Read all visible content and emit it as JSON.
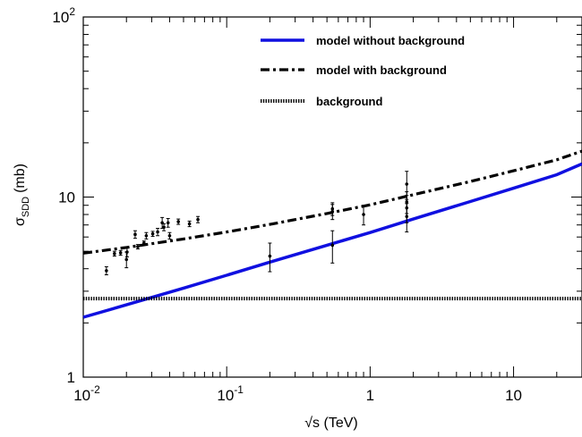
{
  "chart_data": {
    "type": "line",
    "title": "",
    "xlabel": "√s (TeV)",
    "ylabel_main": "σ",
    "ylabel_sub": "SDD",
    "ylabel_unit": "(mb)",
    "xscale": "log",
    "yscale": "log",
    "xlim": [
      0.01,
      30
    ],
    "ylim": [
      1,
      100
    ],
    "grid": false,
    "legend_position": "top-right",
    "x_tick_labels": [
      {
        "value": 0.01,
        "base": "10",
        "exp": "-2"
      },
      {
        "value": 0.1,
        "base": "10",
        "exp": "-1"
      },
      {
        "value": 1,
        "base": "1",
        "exp": ""
      },
      {
        "value": 10,
        "base": "10",
        "exp": ""
      }
    ],
    "y_tick_labels": [
      {
        "value": 1,
        "base": "1",
        "exp": ""
      },
      {
        "value": 10,
        "base": "10",
        "exp": ""
      },
      {
        "value": 100,
        "base": "10",
        "exp": "2"
      }
    ],
    "series": [
      {
        "name": "model without background",
        "style": "solid",
        "color": "#1010e0",
        "x": [
          0.01,
          0.02,
          0.05,
          0.1,
          0.2,
          0.5,
          1,
          2,
          5,
          10,
          20,
          30
        ],
        "y": [
          2.15,
          2.52,
          3.12,
          3.68,
          4.35,
          5.4,
          6.35,
          7.55,
          9.45,
          11.2,
          13.3,
          15.3
        ]
      },
      {
        "name": "model with background",
        "style": "dashdot",
        "color": "#000000",
        "x": [
          0.01,
          0.02,
          0.05,
          0.1,
          0.2,
          0.5,
          1,
          2,
          5,
          10,
          20,
          30
        ],
        "y": [
          4.88,
          5.25,
          5.85,
          6.4,
          7.05,
          8.1,
          9.05,
          10.3,
          12.2,
          14.0,
          16.1,
          18.0
        ]
      },
      {
        "name": "background",
        "style": "dotted",
        "color": "#000000",
        "x": [
          0.01,
          30
        ],
        "y": [
          2.73,
          2.73
        ]
      }
    ],
    "data_points": [
      {
        "x": 0.0145,
        "y": 3.9,
        "err": 0.2
      },
      {
        "x": 0.0165,
        "y": 4.85,
        "err": 0.15
      },
      {
        "x": 0.0182,
        "y": 4.9,
        "err": 0.15
      },
      {
        "x": 0.02,
        "y": 4.5,
        "err": 0.45
      },
      {
        "x": 0.0202,
        "y": 4.95,
        "err": 0.3
      },
      {
        "x": 0.023,
        "y": 6.2,
        "err": 0.3
      },
      {
        "x": 0.024,
        "y": 5.3,
        "err": 0.15
      },
      {
        "x": 0.0265,
        "y": 5.55,
        "err": 0.15
      },
      {
        "x": 0.0275,
        "y": 6.1,
        "err": 0.25
      },
      {
        "x": 0.0305,
        "y": 6.25,
        "err": 0.2
      },
      {
        "x": 0.033,
        "y": 6.4,
        "err": 0.3
      },
      {
        "x": 0.0355,
        "y": 7.2,
        "err": 0.5
      },
      {
        "x": 0.0365,
        "y": 6.8,
        "err": 0.3
      },
      {
        "x": 0.039,
        "y": 7.2,
        "err": 0.4
      },
      {
        "x": 0.04,
        "y": 6.1,
        "err": 0.25
      },
      {
        "x": 0.046,
        "y": 7.3,
        "err": 0.25
      },
      {
        "x": 0.055,
        "y": 7.1,
        "err": 0.25
      },
      {
        "x": 0.063,
        "y": 7.5,
        "err": 0.3
      },
      {
        "x": 0.2,
        "y": 4.7,
        "err": 0.85
      },
      {
        "x": 0.546,
        "y": 8.6,
        "err": 0.7
      },
      {
        "x": 0.546,
        "y": 8.3,
        "err": 0.8
      },
      {
        "x": 0.546,
        "y": 5.4,
        "err": 1.1
      },
      {
        "x": 0.9,
        "y": 8.0,
        "err": 1.0
      },
      {
        "x": 1.8,
        "y": 11.8,
        "err": 2.1
      },
      {
        "x": 1.8,
        "y": 9.4,
        "err": 1.3
      },
      {
        "x": 1.8,
        "y": 8.7,
        "err": 1.5
      },
      {
        "x": 1.8,
        "y": 7.8,
        "err": 1.4
      }
    ]
  }
}
